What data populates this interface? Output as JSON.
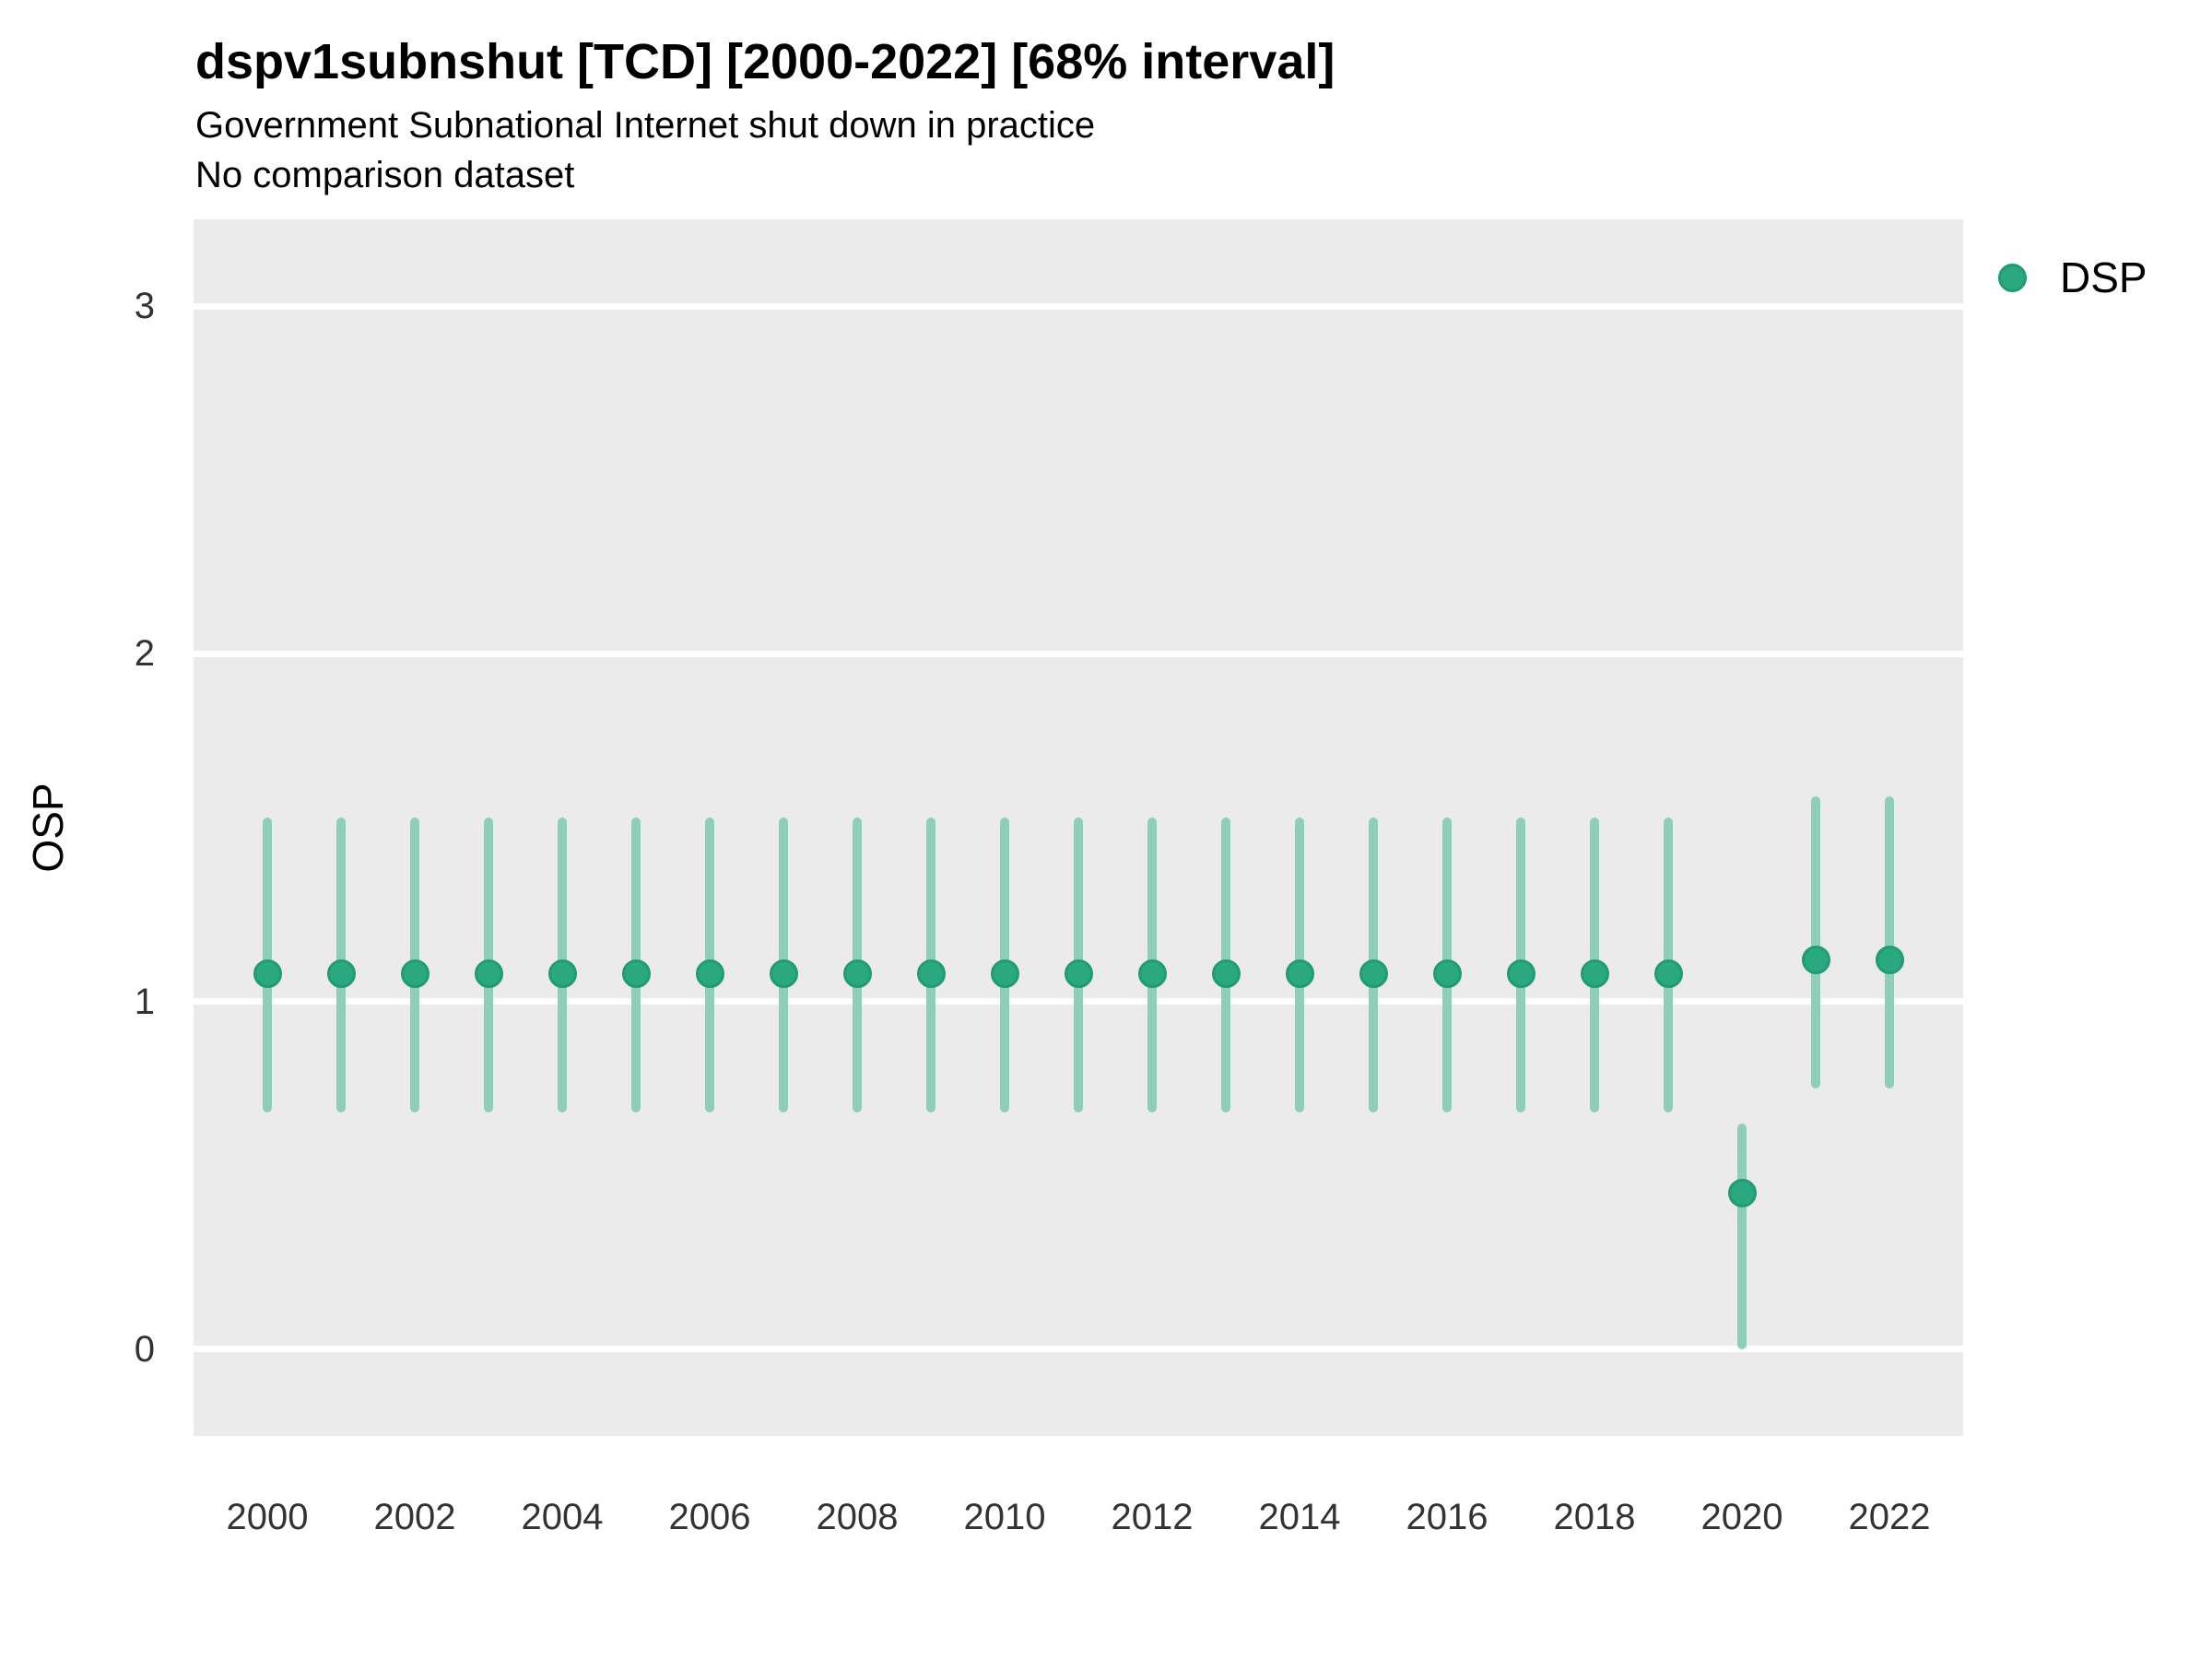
{
  "header": {
    "title": "dspv1subnshut [TCD] [2000-2022] [68% interval]",
    "subtitle": "Government Subnational Internet shut down in practice",
    "dataset_note": "No comparison dataset"
  },
  "axes": {
    "y_label": "OSP",
    "y_ticks": [
      0,
      1,
      2,
      3
    ],
    "x_ticks": [
      2000,
      2002,
      2004,
      2006,
      2008,
      2010,
      2012,
      2014,
      2016,
      2018,
      2020,
      2022
    ]
  },
  "legend": {
    "items": [
      {
        "label": "DSP",
        "color": "#2aa87f"
      }
    ]
  },
  "colors": {
    "panel_background": "#ebebeb",
    "gridline": "#ffffff",
    "point_fill": "#2aa87f",
    "point_stroke": "#1f9c74",
    "interval_bar": "#8fceb7",
    "tick_text": "#333333",
    "text": "#000000"
  },
  "chart_data": {
    "type": "scatter",
    "title": "dspv1subnshut [TCD] [2000-2022] [68% interval]",
    "subtitle": "Government Subnational Internet shut down in practice",
    "note": "No comparison dataset",
    "xlabel": "",
    "ylabel": "OSP",
    "ylim": [
      -0.25,
      3.25
    ],
    "xlim": [
      1999,
      2023
    ],
    "grid": "major-horizontal",
    "legend_position": "right-top",
    "interval": "68%",
    "series": [
      {
        "name": "DSP",
        "color": "#2aa87f",
        "points": [
          {
            "x": 2000,
            "y": 1.08,
            "low": 0.68,
            "high": 1.53
          },
          {
            "x": 2001,
            "y": 1.08,
            "low": 0.68,
            "high": 1.53
          },
          {
            "x": 2002,
            "y": 1.08,
            "low": 0.68,
            "high": 1.53
          },
          {
            "x": 2003,
            "y": 1.08,
            "low": 0.68,
            "high": 1.53
          },
          {
            "x": 2004,
            "y": 1.08,
            "low": 0.68,
            "high": 1.53
          },
          {
            "x": 2005,
            "y": 1.08,
            "low": 0.68,
            "high": 1.53
          },
          {
            "x": 2006,
            "y": 1.08,
            "low": 0.68,
            "high": 1.53
          },
          {
            "x": 2007,
            "y": 1.08,
            "low": 0.68,
            "high": 1.53
          },
          {
            "x": 2008,
            "y": 1.08,
            "low": 0.68,
            "high": 1.53
          },
          {
            "x": 2009,
            "y": 1.08,
            "low": 0.68,
            "high": 1.53
          },
          {
            "x": 2010,
            "y": 1.08,
            "low": 0.68,
            "high": 1.53
          },
          {
            "x": 2011,
            "y": 1.08,
            "low": 0.68,
            "high": 1.53
          },
          {
            "x": 2012,
            "y": 1.08,
            "low": 0.68,
            "high": 1.53
          },
          {
            "x": 2013,
            "y": 1.08,
            "low": 0.68,
            "high": 1.53
          },
          {
            "x": 2014,
            "y": 1.08,
            "low": 0.68,
            "high": 1.53
          },
          {
            "x": 2015,
            "y": 1.08,
            "low": 0.68,
            "high": 1.53
          },
          {
            "x": 2016,
            "y": 1.08,
            "low": 0.68,
            "high": 1.53
          },
          {
            "x": 2017,
            "y": 1.08,
            "low": 0.68,
            "high": 1.53
          },
          {
            "x": 2018,
            "y": 1.08,
            "low": 0.68,
            "high": 1.53
          },
          {
            "x": 2019,
            "y": 1.08,
            "low": 0.68,
            "high": 1.53
          },
          {
            "x": 2020,
            "y": 0.45,
            "low": 0.0,
            "high": 0.65
          },
          {
            "x": 2021,
            "y": 1.12,
            "low": 0.75,
            "high": 1.59
          },
          {
            "x": 2022,
            "y": 1.12,
            "low": 0.75,
            "high": 1.59
          }
        ]
      }
    ]
  }
}
